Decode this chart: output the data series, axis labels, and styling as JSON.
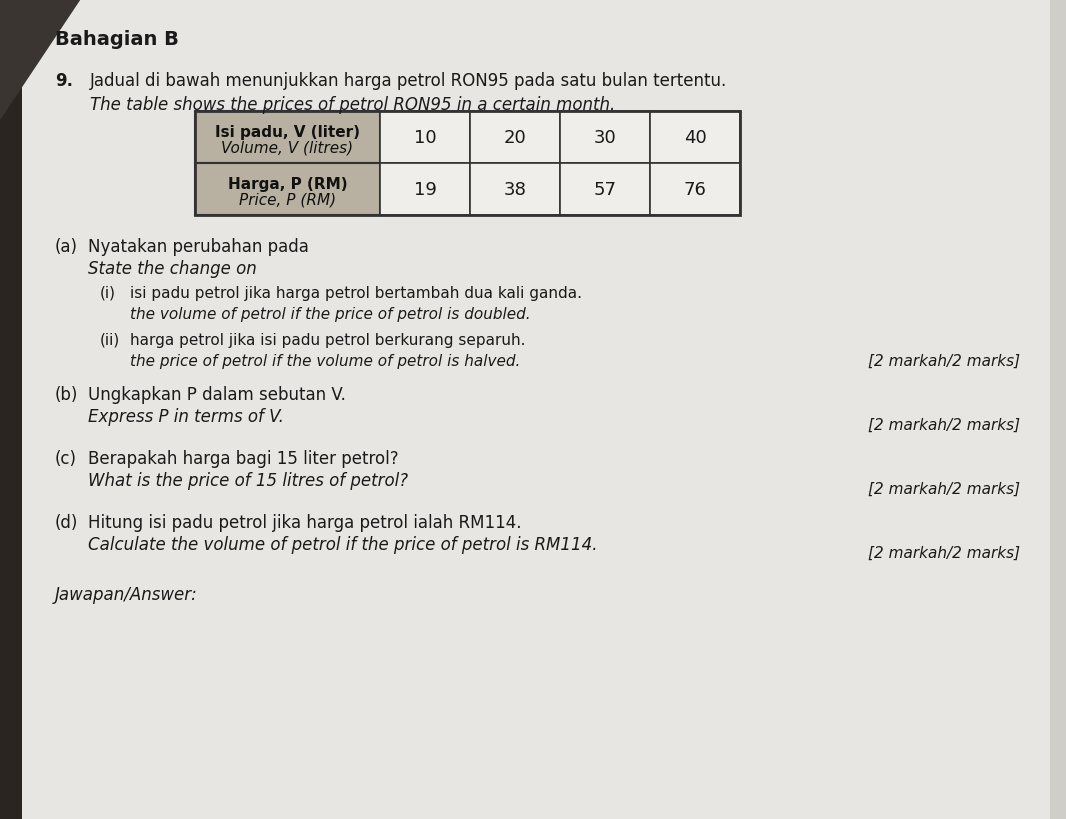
{
  "background_color": "#e8e6e2",
  "title_section": "Bahagian B",
  "question_number": "9.",
  "question_malay": "Jadual di bawah menunjukkan harga petrol RON95 pada satu bulan tertentu.",
  "question_english": "The table shows the prices of petrol RON95 in a certain month.",
  "table": {
    "row1_header_line1": "Isi padu, V (liter)",
    "row1_header_line2": "Volume, V (litres)",
    "row2_header_line1": "Harga, P (RM)",
    "row2_header_line2": "Price, P (RM)",
    "col_values_v": [
      10,
      20,
      30,
      40
    ],
    "col_values_p": [
      19,
      38,
      57,
      76
    ],
    "header_bg": "#b8b0a0",
    "cell_bg": "#f0eeea",
    "border_color": "#333333"
  },
  "part_a_label": "(a)",
  "part_a_malay": "Nyatakan perubahan pada",
  "part_a_english": "State the change on",
  "sub_i_label": "(i)",
  "sub_i_malay": "isi padu petrol jika harga petrol bertambah dua kali ganda.",
  "sub_i_english": "the volume of petrol if the price of petrol is doubled.",
  "sub_ii_label": "(ii)",
  "sub_ii_malay": "harga petrol jika isi padu petrol berkurang separuh.",
  "sub_ii_english": "the price of petrol if the volume of petrol is halved.",
  "marks_a": "[2 markah/2 marks]",
  "part_b_label": "(b)",
  "part_b_malay": "Ungkapkan P dalam sebutan V.",
  "part_b_english": "Express P in terms of V.",
  "marks_b": "[2 markah/2 marks]",
  "part_c_label": "(c)",
  "part_c_malay": "Berapakah harga bagi 15 liter petrol?",
  "part_c_english": "What is the price of 15 litres of petrol?",
  "marks_c": "[2 markah/2 marks]",
  "part_d_label": "(d)",
  "part_d_malay": "Hitung isi padu petrol jika harga petrol ialah RM114.",
  "part_d_english": "Calculate the volume of petrol if the price of petrol is RM114.",
  "marks_d": "[2 markah/2 marks]",
  "footer": "Jawapan/Answer:",
  "corner_dark": "#3a3530",
  "left_edge_dark": "#2a2520",
  "text_color": "#1a1a1a",
  "marks_color": "#1a1a1a",
  "fs_title": 14,
  "fs_body": 12,
  "fs_small": 11,
  "fs_marks": 11,
  "fs_table_header": 11,
  "fs_table_data": 13
}
